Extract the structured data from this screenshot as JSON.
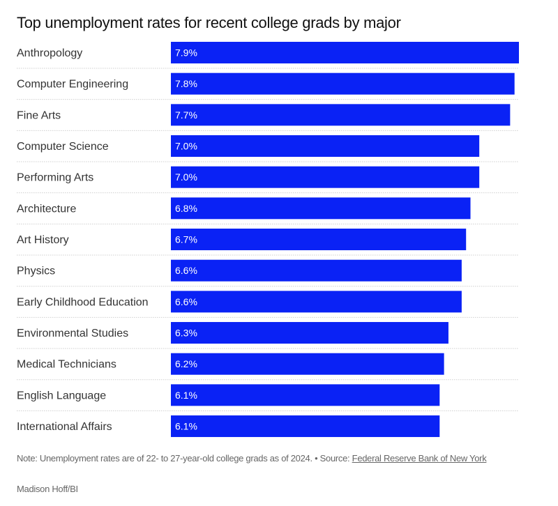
{
  "chart_data": {
    "type": "bar",
    "orientation": "horizontal",
    "title": "Top unemployment rates for recent college grads by major",
    "categories": [
      "Anthropology",
      "Computer Engineering",
      "Fine Arts",
      "Computer Science",
      "Performing Arts",
      "Architecture",
      "Art History",
      "Physics",
      "Early Childhood Education",
      "Environmental Studies",
      "Medical Technicians",
      "English Language",
      "International Affairs"
    ],
    "values": [
      7.9,
      7.8,
      7.7,
      7.0,
      7.0,
      6.8,
      6.7,
      6.6,
      6.6,
      6.3,
      6.2,
      6.1,
      6.1
    ],
    "value_labels": [
      "7.9%",
      "7.8%",
      "7.7%",
      "7.0%",
      "7.0%",
      "6.8%",
      "6.7%",
      "6.6%",
      "6.6%",
      "6.3%",
      "6.2%",
      "6.1%",
      "6.1%"
    ],
    "unit": "%",
    "xlim": [
      0,
      7.9
    ],
    "grid": false,
    "bar_color": "#0a22f5"
  },
  "footer": {
    "note": "Note: Unemployment rates are of 22- to 27-year-old college grads as of 2024. • Source: ",
    "source_link": "Federal Reserve Bank of New York",
    "credit": "Madison Hoff/BI"
  }
}
